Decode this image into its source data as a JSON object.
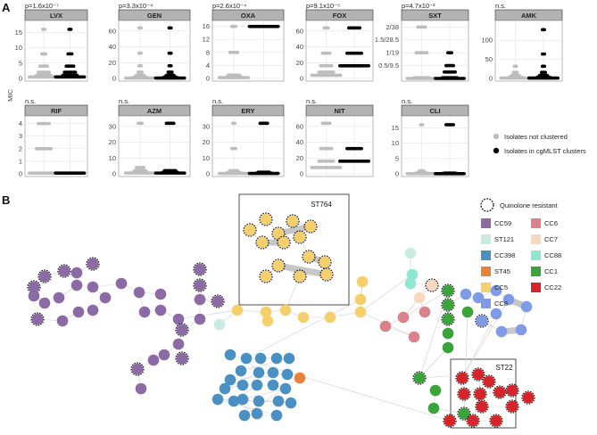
{
  "figure": {
    "panel_a_letter": "A",
    "panel_b_letter": "B",
    "y_axis_label": "MIC"
  },
  "colors": {
    "not_clustered": "#bdbdbd",
    "clustered": "#000000",
    "CC59": "#8b6aa6",
    "ST121": "#c9ebe1",
    "CC398": "#4a90c2",
    "ST45": "#e8823a",
    "CC5": "#f5cf6b",
    "CC6": "#d9828c",
    "CC7": "#f7d9c0",
    "CC88": "#8ee8cf",
    "CC1": "#3aa33a",
    "CC22": "#d7232a",
    "CC8": "#7f9be6"
  },
  "chart_data": [
    {
      "type": "scatter",
      "title": "LVX",
      "annotation": "p=1.6x10⁻⁷",
      "ylim": [
        0,
        18
      ],
      "yticks": [
        "0",
        "5",
        "10",
        "15"
      ],
      "ytick_values": [
        0,
        5,
        10,
        15
      ],
      "series": [
        {
          "name": "Isolates not clustered",
          "x": 0,
          "values": [
            0.5,
            1,
            2,
            4,
            8,
            16
          ]
        },
        {
          "name": "Isolates in cgMLST clusters",
          "x": 1,
          "values": [
            0.5,
            1,
            2,
            4,
            8,
            16
          ]
        }
      ]
    },
    {
      "type": "scatter",
      "title": "GEN",
      "annotation": "p=3.3x10⁻⁴",
      "ylim": [
        0,
        70
      ],
      "yticks": [
        "0",
        "20",
        "40",
        "60"
      ],
      "ytick_values": [
        0,
        20,
        40,
        60
      ],
      "series": [
        {
          "name": "Isolates not clustered",
          "x": 0,
          "values": [
            0.5,
            1,
            2,
            4,
            8,
            16,
            32,
            64
          ]
        },
        {
          "name": "Isolates in cgMLST clusters",
          "x": 1,
          "values": [
            0.5,
            1,
            2,
            4,
            8,
            16,
            32,
            64
          ]
        }
      ]
    },
    {
      "type": "scatter",
      "title": "OXA",
      "annotation": "p=2.6x10⁻⁴",
      "ylim": [
        0,
        17
      ],
      "yticks": [
        "0",
        "4",
        "8",
        "12",
        "16"
      ],
      "ytick_values": [
        0,
        4,
        8,
        12,
        16
      ],
      "series": [
        {
          "name": "Isolates not clustered",
          "x": 0,
          "values": [
            0.25,
            0.5,
            1,
            8,
            16
          ]
        },
        {
          "name": "Isolates in cgMLST clusters",
          "x": 1,
          "values": [
            16
          ]
        }
      ]
    },
    {
      "type": "scatter",
      "title": "FOX",
      "annotation": "p=9.1x10⁻⁵",
      "ylim": [
        0,
        70
      ],
      "yticks": [
        "0",
        "20",
        "40",
        "60"
      ],
      "ytick_values": [
        0,
        20,
        40,
        60
      ],
      "series": [
        {
          "name": "Isolates not clustered",
          "x": 0,
          "values": [
            4,
            8,
            16,
            32,
            64
          ]
        },
        {
          "name": "Isolates in cgMLST clusters",
          "x": 1,
          "values": [
            16,
            32,
            64
          ]
        }
      ]
    },
    {
      "type": "scatter",
      "title": "SXT",
      "annotation": "p=4.7x10⁻²",
      "ylim": [
        0,
        4.3
      ],
      "yticks": [
        "0.5/9.5",
        "1/19",
        "1.5/28.5",
        "2/38"
      ],
      "ytick_values": [
        1,
        2,
        3,
        4
      ],
      "series": [
        {
          "name": "Isolates not clustered",
          "x": 0,
          "values": [
            0,
            0.06,
            2,
            4
          ]
        },
        {
          "name": "Isolates in cgMLST clusters",
          "x": 1,
          "values": [
            0,
            0.06,
            0.5,
            1,
            2
          ]
        }
      ]
    },
    {
      "type": "scatter",
      "title": "AMK",
      "annotation": "n.s.",
      "ylim": [
        0,
        145
      ],
      "yticks": [
        "0",
        "50",
        "100"
      ],
      "ytick_values": [
        0,
        50,
        100
      ],
      "series": [
        {
          "name": "Isolates not clustered",
          "x": 0,
          "values": [
            1,
            2,
            4,
            8,
            16,
            32
          ]
        },
        {
          "name": "Isolates in cgMLST clusters",
          "x": 1,
          "values": [
            1,
            2,
            4,
            8,
            16,
            32,
            64,
            128
          ]
        }
      ]
    },
    {
      "type": "scatter",
      "title": "RIF",
      "annotation": "n.s.",
      "ylim": [
        0,
        4.4
      ],
      "yticks": [
        "0",
        "1",
        "2",
        "3",
        "4"
      ],
      "ytick_values": [
        0,
        1,
        2,
        3,
        4
      ],
      "series": [
        {
          "name": "Isolates not clustered",
          "x": 0,
          "values": [
            0.06,
            2,
            4
          ]
        },
        {
          "name": "Isolates in cgMLST clusters",
          "x": 1,
          "values": [
            0.06
          ]
        }
      ]
    },
    {
      "type": "scatter",
      "title": "AZM",
      "annotation": "n.s.",
      "ylim": [
        0,
        35
      ],
      "yticks": [
        "0",
        "10",
        "20",
        "30"
      ],
      "ytick_values": [
        0,
        10,
        20,
        30
      ],
      "series": [
        {
          "name": "Isolates not clustered",
          "x": 0,
          "values": [
            0.5,
            1,
            2,
            4,
            32
          ]
        },
        {
          "name": "Isolates in cgMLST clusters",
          "x": 1,
          "values": [
            0.5,
            1,
            2,
            32
          ]
        }
      ]
    },
    {
      "type": "scatter",
      "title": "ERY",
      "annotation": "n.s.",
      "ylim": [
        0,
        35
      ],
      "yticks": [
        "0",
        "10",
        "20",
        "30"
      ],
      "ytick_values": [
        0,
        10,
        20,
        30
      ],
      "series": [
        {
          "name": "Isolates not clustered",
          "x": 0,
          "values": [
            0.25,
            0.5,
            1,
            2,
            16,
            32
          ]
        },
        {
          "name": "Isolates in cgMLST clusters",
          "x": 1,
          "values": [
            0.25,
            0.5,
            1,
            32
          ]
        }
      ]
    },
    {
      "type": "scatter",
      "title": "NIT",
      "annotation": "n.s.",
      "ylim": [
        0,
        70
      ],
      "yticks": [
        "0",
        "20",
        "40",
        "60"
      ],
      "ytick_values": [
        0,
        20,
        40,
        60
      ],
      "series": [
        {
          "name": "Isolates not clustered",
          "x": 0,
          "values": [
            8,
            16,
            32,
            64
          ]
        },
        {
          "name": "Isolates in cgMLST clusters",
          "x": 1,
          "values": [
            16,
            32
          ]
        }
      ]
    },
    {
      "type": "scatter",
      "title": "CLI",
      "annotation": "n.s.",
      "ylim": [
        0,
        18
      ],
      "yticks": [
        "0",
        "5",
        "10",
        "15"
      ],
      "ytick_values": [
        0,
        5,
        10,
        15
      ],
      "series": [
        {
          "name": "Isolates not clustered",
          "x": 0,
          "values": [
            0.06,
            0.12,
            0.25,
            0.5,
            1,
            16
          ]
        },
        {
          "name": "Isolates in cgMLST clusters",
          "x": 1,
          "values": [
            0.06,
            0.12,
            0.25,
            16
          ]
        }
      ]
    }
  ],
  "legend_a": [
    {
      "label": "Isolates not clustered",
      "color": "#bdbdbd"
    },
    {
      "label": "Isolates in cgMLST clusters",
      "color": "#000000"
    }
  ],
  "legend_b": {
    "quinolone_label": "Quinolone resistant",
    "items": [
      {
        "label": "CC59",
        "key": "CC59"
      },
      {
        "label": "CC6",
        "key": "CC6"
      },
      {
        "label": "ST121",
        "key": "ST121"
      },
      {
        "label": "CC7",
        "key": "CC7"
      },
      {
        "label": "CC398",
        "key": "CC398"
      },
      {
        "label": "CC88",
        "key": "CC88"
      },
      {
        "label": "ST45",
        "key": "ST45"
      },
      {
        "label": "CC1",
        "key": "CC1"
      },
      {
        "label": "CC5",
        "key": "CC5"
      },
      {
        "label": "CC22",
        "key": "CC22"
      },
      {
        "label": "CC8",
        "key": "CC8"
      }
    ]
  },
  "cluster_labels": {
    "st764": "ST764",
    "st22": "ST22"
  }
}
